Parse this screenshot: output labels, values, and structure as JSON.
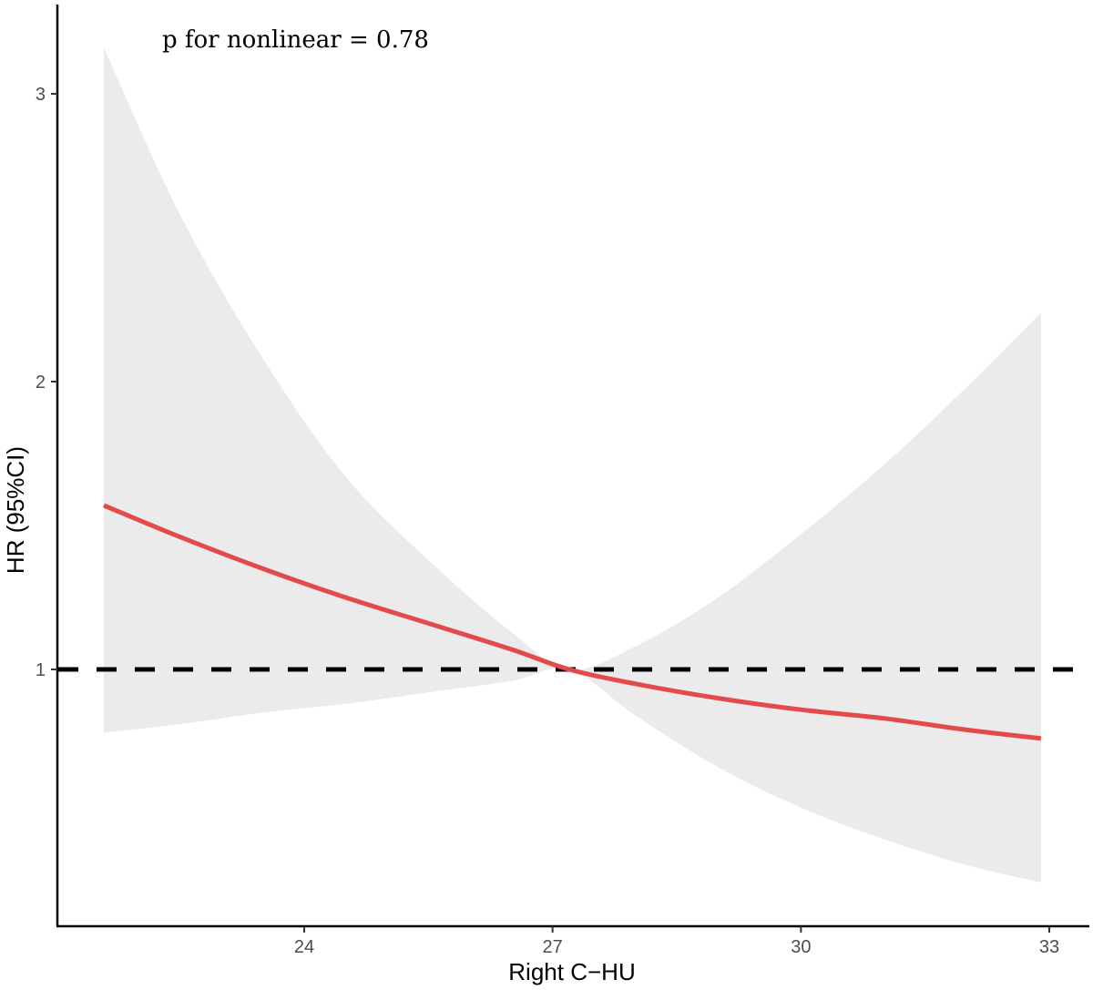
{
  "chart_data": {
    "type": "line",
    "title": "",
    "xlabel": "Right C−HU",
    "ylabel": "HR (95%CI)",
    "xlim": [
      20.4,
      33.4
    ],
    "ylim": [
      0.12,
      3.3
    ],
    "x_ticks": [
      24,
      27,
      30,
      33
    ],
    "x_tick_labels": [
      "24",
      "27",
      "30",
      "33"
    ],
    "y_ticks": [
      1,
      2,
      3
    ],
    "y_tick_labels": [
      "1",
      "2",
      "3"
    ],
    "grid": false,
    "legend": null,
    "annotation": "p for nonlinear = 0.78",
    "reference_line": {
      "y": 1,
      "style": "dashed",
      "color": "#000000"
    },
    "x": [
      21.58,
      22.5,
      23.5,
      24.5,
      25.5,
      26.5,
      27.2,
      28.0,
      29.0,
      30.0,
      31.0,
      32.0,
      32.9
    ],
    "series": [
      {
        "name": "HR",
        "color": "#e34a4a",
        "values": [
          1.57,
          1.46,
          1.35,
          1.25,
          1.16,
          1.07,
          1.0,
          0.95,
          0.9,
          0.86,
          0.83,
          0.79,
          0.76
        ]
      },
      {
        "name": "95% CI upper",
        "color": "#ebebeb",
        "values": [
          3.16,
          2.58,
          2.08,
          1.67,
          1.38,
          1.13,
          1.0,
          1.08,
          1.25,
          1.47,
          1.71,
          1.98,
          2.24
        ]
      },
      {
        "name": "95% CI lower",
        "color": "#ebebeb",
        "values": [
          0.78,
          0.81,
          0.85,
          0.88,
          0.92,
          0.96,
          1.0,
          0.84,
          0.66,
          0.52,
          0.41,
          0.32,
          0.26
        ]
      }
    ]
  },
  "style": {
    "line_color": "#e34a4a",
    "ribbon_color": "#ebebeb",
    "axis_color": "#000000",
    "tick_label_color": "#4d4d4d"
  }
}
